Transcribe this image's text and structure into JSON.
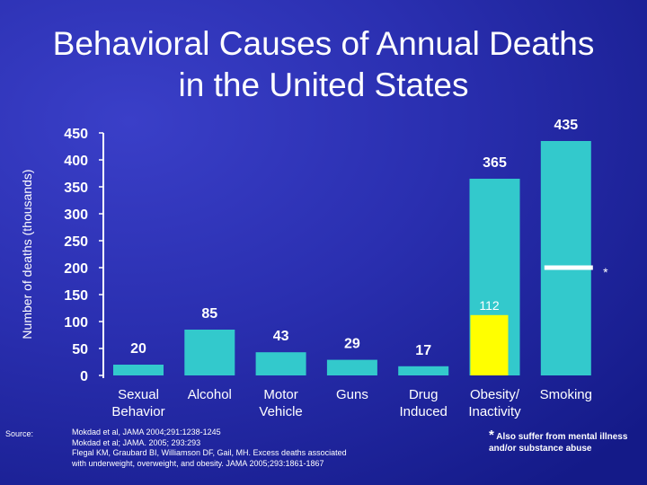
{
  "title": [
    "Behavioral Causes of Annual Deaths",
    "in the United States"
  ],
  "chart_data": {
    "type": "bar",
    "ylabel": "Number of deaths (thousands)",
    "ylim": [
      0,
      450
    ],
    "yticks": [
      0,
      50,
      100,
      150,
      200,
      250,
      300,
      350,
      400,
      450
    ],
    "categories": [
      [
        "Sexual",
        "Behavior"
      ],
      [
        "Alcohol"
      ],
      [
        "Motor",
        "Vehicle"
      ],
      [
        "Guns"
      ],
      [
        "Drug",
        "Induced"
      ],
      [
        "Obesity/",
        "Inactivity"
      ],
      [
        "Smoking"
      ]
    ],
    "bars": [
      {
        "value": 20,
        "label": "20"
      },
      {
        "value": 85,
        "label": "85"
      },
      {
        "value": 43,
        "label": "43"
      },
      {
        "value": 29,
        "label": "29"
      },
      {
        "value": 17,
        "label": "17"
      },
      {
        "value": 365,
        "label": "365",
        "overlay_value": 112,
        "overlay_label": "112"
      },
      {
        "value": 435,
        "label": "435",
        "marker_value": 200,
        "marker_label": "*"
      }
    ],
    "colors": {
      "bar": "#33c9cc",
      "overlay": "#ffff00",
      "marker": "#ffffff",
      "axis": "#ffffff"
    },
    "grid": false
  },
  "source": {
    "label": "Source:",
    "lines": [
      "Mokdad et al, JAMA 2004;291:1238-1245",
      "Mokdad et al; JAMA. 2005; 293:293",
      "Flegal KM, Graubard BI, Williamson DF, Gail, MH. Excess deaths associated",
      "with underweight, overweight, and obesity. JAMA 2005;293:1861-1867"
    ]
  },
  "footnote": {
    "star": "*",
    "text": "Also suffer from mental illness and/or substance abuse"
  }
}
